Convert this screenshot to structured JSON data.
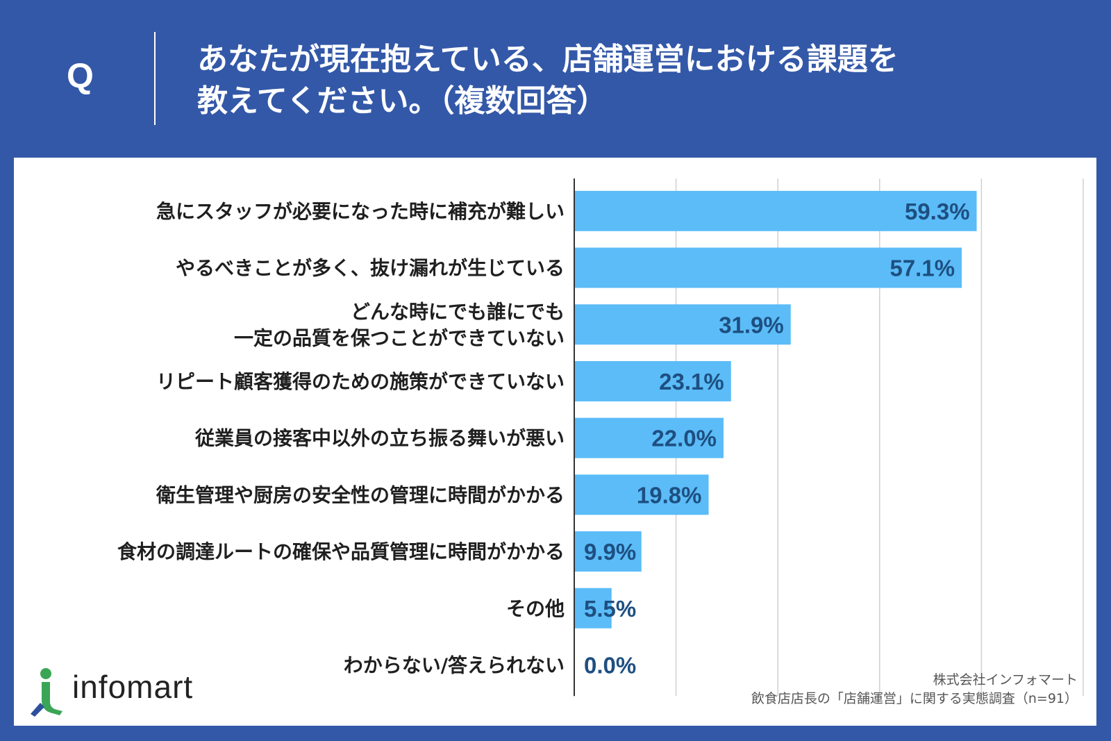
{
  "header": {
    "q_mark": "Q",
    "question_line1": "あなたが現在抱えている、店舗運営における課題を",
    "question_line2": "教えてください。（複数回答）"
  },
  "chart_data": {
    "type": "bar",
    "orientation": "horizontal",
    "title": "あなたが現在抱えている、店舗運営における課題を教えてください。（複数回答）",
    "categories": [
      [
        "急にスタッフが必要になった時に補充が難しい"
      ],
      [
        "やるべきことが多く、抜け漏れが生じている"
      ],
      [
        "どんな時にでも誰にでも",
        "一定の品質を保つことができていない"
      ],
      [
        "リピート顧客獲得のための施策ができていない"
      ],
      [
        "従業員の接客中以外の立ち振る舞いが悪い"
      ],
      [
        "衛生管理や厨房の安全性の管理に時間がかかる"
      ],
      [
        "食材の調達ルートの確保や品質管理に時間がかかる"
      ],
      [
        "その他"
      ],
      [
        "わからない/答えられない"
      ]
    ],
    "values": [
      59.3,
      57.1,
      31.9,
      23.1,
      22.0,
      19.8,
      9.9,
      5.5,
      0.0
    ],
    "value_labels": [
      "59.3%",
      "57.1%",
      "31.9%",
      "23.1%",
      "22.0%",
      "19.8%",
      "9.9%",
      "5.5%",
      "0.0%"
    ],
    "xlim": [
      0,
      75
    ],
    "grid_step": 15,
    "bar_color": "#5bbcf8",
    "label_color": "#1e4f80",
    "grid": true
  },
  "footer": {
    "logo_text": "infomart",
    "source_line1": "株式会社インフォマート",
    "source_line2": "飲食店店長の「店舗運営」に関する実態調査（n=91）"
  },
  "colors": {
    "background": "#3358a8",
    "panel": "#ffffff",
    "logo_green": "#3aa655"
  }
}
